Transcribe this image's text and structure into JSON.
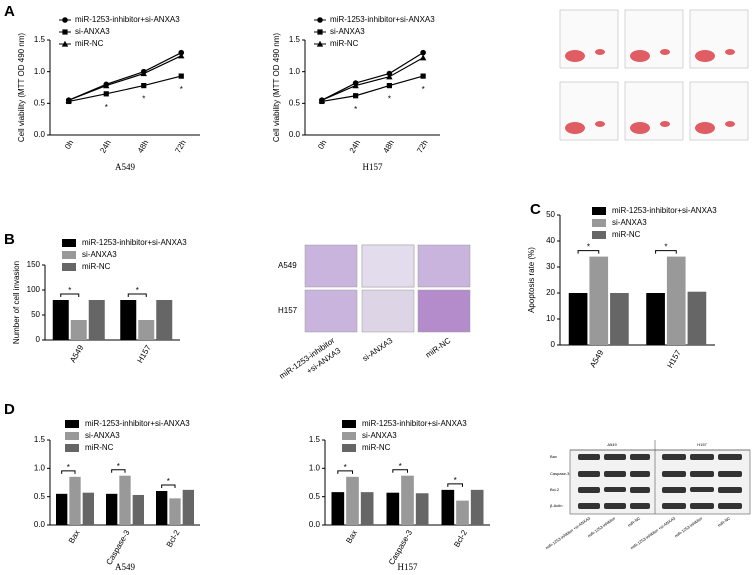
{
  "panel_labels": [
    "A",
    "B",
    "C",
    "D"
  ],
  "chart_data": [
    {
      "type": "line",
      "xlabel": "A549",
      "ylabel": "Cell viability (MTT OD 490 nm)",
      "categories": [
        "0h",
        "24h",
        "48h",
        "72h"
      ],
      "ylim": [
        0,
        1.5
      ],
      "yticks": [
        {
          "value": 0,
          "label": "0.0"
        },
        0.5,
        {
          "value": 1,
          "label": "1.0"
        },
        1.5
      ],
      "series": [
        {
          "name": "miR-1253-inhibitor+si-ANXA3",
          "color": "#000000",
          "marker": "circle",
          "values": [
            0.55,
            0.8,
            1.0,
            1.3
          ]
        },
        {
          "name": "si-ANXA3",
          "color": "#000000",
          "marker": "square",
          "values": [
            0.53,
            0.65,
            0.78,
            0.93
          ]
        },
        {
          "name": "miR-NC",
          "color": "#000000",
          "marker": "triangle",
          "values": [
            0.55,
            0.78,
            0.97,
            1.25
          ]
        }
      ],
      "markers": [
        null,
        "*",
        "*",
        "*"
      ]
    },
    {
      "type": "line",
      "xlabel": "H157",
      "ylabel": "Cell viability (MTT OD 490 nm)",
      "categories": [
        "0h",
        "24h",
        "48h",
        "72h"
      ],
      "ylim": [
        0,
        1.5
      ],
      "yticks": [
        {
          "value": 0,
          "label": "0.0"
        },
        0.5,
        {
          "value": 1,
          "label": "1.0"
        },
        1.5
      ],
      "series": [
        {
          "name": "miR-1253-inhibitor+si-ANXA3",
          "color": "#000000",
          "marker": "circle",
          "values": [
            0.55,
            0.82,
            0.97,
            1.3
          ]
        },
        {
          "name": "si-ANXA3",
          "color": "#000000",
          "marker": "square",
          "values": [
            0.53,
            0.62,
            0.78,
            0.93
          ]
        },
        {
          "name": "miR-NC",
          "color": "#000000",
          "marker": "triangle",
          "values": [
            0.55,
            0.78,
            0.92,
            1.22
          ]
        }
      ],
      "markers": [
        null,
        "*",
        "*",
        "*"
      ]
    },
    {
      "type": "bar",
      "ylabel": "Number of cell invasion",
      "categories": [
        "A549",
        "H157"
      ],
      "ylim": [
        0,
        150
      ],
      "yticks": [
        0,
        50,
        100,
        150
      ],
      "series": [
        {
          "name": "miR-1253-inhibitor+si-ANXA3",
          "color": "#000000",
          "values": [
            80,
            80
          ]
        },
        {
          "name": "si-ANXA3",
          "color": "#999999",
          "values": [
            40,
            40
          ]
        },
        {
          "name": "miR-NC",
          "color": "#666666",
          "values": [
            80,
            80
          ]
        }
      ],
      "significance": [
        "*",
        "*"
      ]
    },
    {
      "type": "bar",
      "ylabel": "Apoptosis rate (%)",
      "categories": [
        "A549",
        "H157"
      ],
      "ylim": [
        0,
        50
      ],
      "yticks": [
        0,
        10,
        20,
        30,
        40,
        50
      ],
      "series": [
        {
          "name": "miR-1253-inhibitor+si-ANXA3",
          "color": "#000000",
          "values": [
            20,
            20
          ]
        },
        {
          "name": "si-ANXA3",
          "color": "#999999",
          "values": [
            34,
            34
          ]
        },
        {
          "name": "miR-NC",
          "color": "#666666",
          "values": [
            20,
            20.5
          ]
        }
      ],
      "significance": [
        "*",
        "*"
      ]
    },
    {
      "type": "bar",
      "xlabel": "A549",
      "categories": [
        "Bax",
        "Caspase-3",
        "Bcl-2"
      ],
      "ylim": [
        0,
        1.5
      ],
      "yticks": [
        {
          "value": 0,
          "label": "0.0"
        },
        0.5,
        {
          "value": 1,
          "label": "1.0"
        },
        1.5
      ],
      "series": [
        {
          "name": "miR-1253-inhibitor+si-ANXA3",
          "color": "#000000",
          "values": [
            0.55,
            0.55,
            0.6
          ]
        },
        {
          "name": "si-ANXA3",
          "color": "#999999",
          "values": [
            0.85,
            0.87,
            0.47
          ]
        },
        {
          "name": "miR-NC",
          "color": "#666666",
          "values": [
            0.57,
            0.53,
            0.62
          ]
        }
      ],
      "significance": [
        "*",
        "*",
        "*"
      ]
    },
    {
      "type": "bar",
      "xlabel": "H157",
      "categories": [
        "Bax",
        "Caspase-3",
        "Bcl-2"
      ],
      "ylim": [
        0,
        1.5
      ],
      "yticks": [
        {
          "value": 0,
          "label": "0.0"
        },
        0.5,
        {
          "value": 1,
          "label": "1.0"
        },
        1.5
      ],
      "series": [
        {
          "name": "miR-1253-inhibitor+si-ANXA3",
          "color": "#000000",
          "values": [
            0.58,
            0.57,
            0.62
          ]
        },
        {
          "name": "si-ANXA3",
          "color": "#999999",
          "values": [
            0.85,
            0.87,
            0.43
          ]
        },
        {
          "name": "miR-NC",
          "color": "#666666",
          "values": [
            0.58,
            0.56,
            0.62
          ]
        }
      ],
      "significance": [
        "*",
        "*",
        "*"
      ]
    }
  ],
  "transwell": {
    "rows": [
      "A549",
      "H157"
    ],
    "columns": [
      "miR-1253-inhibitor",
      "+si-ANXA3",
      "si-ANXA3",
      "miR-NC"
    ]
  },
  "western": {
    "groups": [
      "A549",
      "H157"
    ],
    "rows": [
      "Bax",
      "Caspase-3",
      "Bcl-2",
      "β-Actin"
    ],
    "lanes": [
      "miR-1253-inhibitor +si-ANXA3",
      "miR-1253-inhibitor",
      "miR-NC"
    ]
  }
}
